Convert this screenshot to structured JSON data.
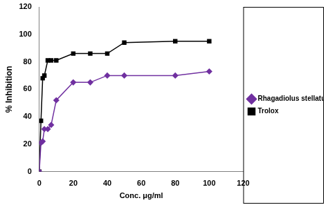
{
  "chart_data": {
    "type": "line",
    "x_label": "Conc. μg/ml",
    "y_label": "% Inhibition",
    "x": [
      0,
      1,
      2,
      3,
      5,
      7,
      10,
      20,
      30,
      40,
      50,
      80,
      100
    ],
    "series": [
      {
        "name": "Rhagadiolus stellatus",
        "color": "#7030a0",
        "marker": "diamond",
        "line_style": "solid",
        "values": [
          0,
          21,
          22,
          31,
          31,
          34,
          52,
          65,
          65,
          70,
          70,
          70,
          73
        ]
      },
      {
        "name": "Trolox",
        "color": "#000000",
        "marker": "square",
        "line_style": "solid",
        "values": [
          0,
          37,
          68,
          70,
          81,
          81,
          81,
          86,
          86,
          86,
          94,
          95,
          95
        ]
      }
    ],
    "xlim": [
      0,
      120
    ],
    "xticks": [
      0,
      20,
      40,
      60,
      80,
      100,
      120
    ],
    "ylim": [
      0,
      120
    ],
    "yticks": [
      0,
      20,
      40,
      60,
      80,
      100,
      120
    ],
    "grid": false,
    "legend": "right"
  }
}
